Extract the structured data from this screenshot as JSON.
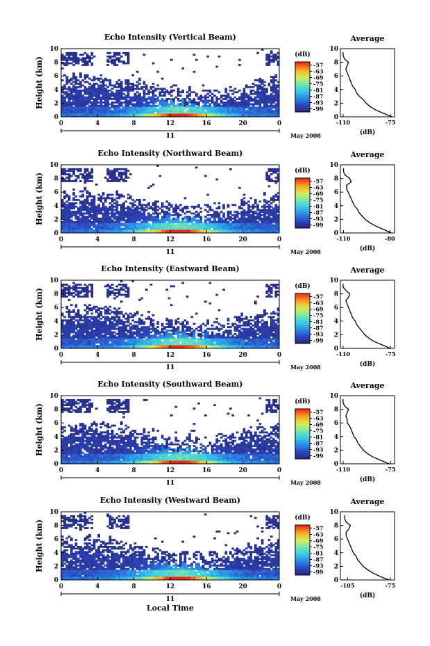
{
  "figure": {
    "bottom_xlabel": "Local Time",
    "date_label": "May 2008",
    "day_label": "11",
    "colorbar_unit": "(dB)",
    "avg_title": "Average",
    "avg_xlabel": "(dB)"
  },
  "chart_data": [
    {
      "type": "heatmap",
      "title": "Echo Intensity (Vertical Beam)",
      "ylabel": "Height (km)",
      "x_ticks": [
        "0",
        "4",
        "8",
        "12",
        "16",
        "20",
        "0"
      ],
      "y_ticks": [
        "0",
        "2",
        "4",
        "6",
        "8",
        "10"
      ],
      "xlim": [
        0,
        24
      ],
      "ylim": [
        0,
        10
      ],
      "colorbar_ticks": [
        "-57",
        "-63",
        "-69",
        "-75",
        "-81",
        "-87",
        "-93",
        "-99"
      ],
      "colorbar_range": [
        -102,
        -54
      ],
      "profile": {
        "title": "Average",
        "xlabel": "(dB)",
        "x_ticks": [
          "-110",
          "-75"
        ],
        "xlim": [
          -112,
          -72
        ],
        "y_ticks": [
          "0",
          "2",
          "4",
          "6",
          "8",
          "10"
        ],
        "heights": [
          0,
          0.5,
          1,
          1.5,
          2,
          2.5,
          3,
          3.5,
          4,
          4.5,
          5,
          5.5,
          6,
          6.5,
          7,
          7.5,
          8,
          8.5,
          9,
          9.5
        ],
        "values": [
          -74,
          -80,
          -86,
          -90,
          -93,
          -95,
          -98,
          -100,
          -101,
          -103,
          -104,
          -105,
          -106,
          -107,
          -108,
          -107,
          -106,
          -109,
          -110,
          -110
        ]
      }
    },
    {
      "type": "heatmap",
      "title": "Echo Intensity (Northward Beam)",
      "ylabel": "Height (km)",
      "x_ticks": [
        "0",
        "4",
        "8",
        "12",
        "16",
        "20",
        "0"
      ],
      "y_ticks": [
        "0",
        "2",
        "4",
        "6",
        "8",
        "10"
      ],
      "xlim": [
        0,
        24
      ],
      "ylim": [
        0,
        10
      ],
      "colorbar_ticks": [
        "-57",
        "-63",
        "-69",
        "-75",
        "-81",
        "-87",
        "-93",
        "-99"
      ],
      "colorbar_range": [
        -102,
        -54
      ],
      "profile": {
        "title": "Average",
        "xlabel": "(dB)",
        "x_ticks": [
          "-110",
          "-80"
        ],
        "xlim": [
          -112,
          -77
        ],
        "y_ticks": [
          "0",
          "2",
          "4",
          "6",
          "8",
          "10"
        ],
        "heights": [
          0,
          0.5,
          1,
          1.5,
          2,
          2.5,
          3,
          3.5,
          4,
          4.5,
          5,
          5.5,
          6,
          6.5,
          7,
          7.5,
          8,
          8.5,
          9,
          9.5
        ],
        "values": [
          -79,
          -84,
          -89,
          -93,
          -96,
          -98,
          -100,
          -101,
          -103,
          -104,
          -105,
          -106,
          -107,
          -108,
          -108,
          -105,
          -106,
          -109,
          -110,
          -110
        ]
      }
    },
    {
      "type": "heatmap",
      "title": "Echo Intensity (Eastward Beam)",
      "ylabel": "Height (km)",
      "x_ticks": [
        "0",
        "4",
        "8",
        "12",
        "16",
        "20",
        "0"
      ],
      "y_ticks": [
        "0",
        "2",
        "4",
        "6",
        "8",
        "10"
      ],
      "xlim": [
        0,
        24
      ],
      "ylim": [
        0,
        10
      ],
      "colorbar_ticks": [
        "-57",
        "-63",
        "-69",
        "-75",
        "-81",
        "-87",
        "-93",
        "-99"
      ],
      "colorbar_range": [
        -102,
        -54
      ],
      "profile": {
        "title": "Average",
        "xlabel": "(dB)",
        "x_ticks": [
          "-110",
          "-75"
        ],
        "xlim": [
          -112,
          -72
        ],
        "y_ticks": [
          "0",
          "2",
          "4",
          "6",
          "8",
          "10"
        ],
        "heights": [
          0,
          0.5,
          1,
          1.5,
          2,
          2.5,
          3,
          3.5,
          4,
          4.5,
          5,
          5.5,
          6,
          6.5,
          7,
          7.5,
          8,
          8.5,
          9,
          9.5
        ],
        "values": [
          -75,
          -81,
          -87,
          -91,
          -94,
          -96,
          -98,
          -100,
          -101,
          -103,
          -104,
          -105,
          -106,
          -107,
          -108,
          -106,
          -105,
          -108,
          -110,
          -110
        ]
      }
    },
    {
      "type": "heatmap",
      "title": "Echo Intensity (Southward Beam)",
      "ylabel": "Height (km)",
      "x_ticks": [
        "0",
        "4",
        "8",
        "12",
        "16",
        "20",
        "0"
      ],
      "y_ticks": [
        "0",
        "2",
        "4",
        "6",
        "8",
        "10"
      ],
      "xlim": [
        0,
        24
      ],
      "ylim": [
        0,
        10
      ],
      "colorbar_ticks": [
        "-57",
        "-63",
        "-69",
        "-75",
        "-81",
        "-87",
        "-93",
        "-99"
      ],
      "colorbar_range": [
        -102,
        -54
      ],
      "profile": {
        "title": "Average",
        "xlabel": "(dB)",
        "x_ticks": [
          "-110",
          "-75"
        ],
        "xlim": [
          -112,
          -72
        ],
        "y_ticks": [
          "0",
          "2",
          "4",
          "6",
          "8",
          "10"
        ],
        "heights": [
          0,
          0.5,
          1,
          1.5,
          2,
          2.5,
          3,
          3.5,
          4,
          4.5,
          5,
          5.5,
          6,
          6.5,
          7,
          7.5,
          8,
          8.5,
          9,
          9.5
        ],
        "values": [
          -76,
          -82,
          -88,
          -92,
          -95,
          -97,
          -99,
          -100,
          -102,
          -103,
          -104,
          -105,
          -107,
          -107,
          -108,
          -107,
          -106,
          -109,
          -110,
          -110
        ]
      }
    },
    {
      "type": "heatmap",
      "title": "Echo Intensity (Westward Beam)",
      "ylabel": "Height (km)",
      "x_ticks": [
        "0",
        "4",
        "8",
        "12",
        "16",
        "20",
        "0"
      ],
      "y_ticks": [
        "0",
        "2",
        "4",
        "6",
        "8",
        "10"
      ],
      "xlim": [
        0,
        24
      ],
      "ylim": [
        0,
        10
      ],
      "colorbar_ticks": [
        "-57",
        "-63",
        "-69",
        "-75",
        "-81",
        "-87",
        "-93",
        "-99"
      ],
      "colorbar_range": [
        -102,
        -54
      ],
      "profile": {
        "title": "Average",
        "xlabel": "(dB)",
        "x_ticks": [
          "-105",
          "-75"
        ],
        "xlim": [
          -110,
          -72
        ],
        "y_ticks": [
          "0",
          "2",
          "4",
          "6",
          "8",
          "10"
        ],
        "heights": [
          0,
          0.5,
          1,
          1.5,
          2,
          2.5,
          3,
          3.5,
          4,
          4.5,
          5,
          5.5,
          6,
          6.5,
          7,
          7.5,
          8,
          8.5,
          9,
          9.5
        ],
        "values": [
          -76,
          -82,
          -87,
          -91,
          -94,
          -96,
          -98,
          -99,
          -101,
          -102,
          -103,
          -104,
          -105,
          -106,
          -106,
          -104,
          -103,
          -106,
          -107,
          -107
        ]
      }
    }
  ]
}
